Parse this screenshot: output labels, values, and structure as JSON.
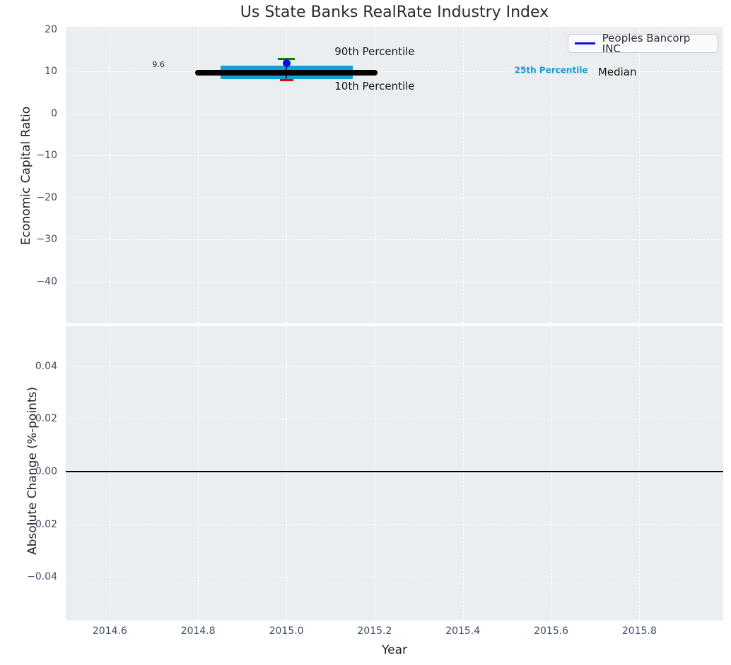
{
  "chart_data": {
    "type": "boxplot",
    "title": "Us State Banks RealRate Industry Index",
    "xlabel": "Year",
    "grid": true,
    "legend_position": "upper right",
    "legend": {
      "label": "Peoples Bancorp INC",
      "line_color": "#0d0de8"
    },
    "xlim": [
      2014.5,
      2015.99
    ],
    "x_ticks": [
      2014.6,
      2014.8,
      2015.0,
      2015.2,
      2015.4,
      2015.6,
      2015.8
    ],
    "x_tick_labels": [
      "2014.6",
      "2014.8",
      "2015.0",
      "2015.2",
      "2015.4",
      "2015.6",
      "2015.8"
    ],
    "panels": [
      {
        "name": "industry-index",
        "ylabel": "Economic Capital Ratio",
        "ylim": [
          -50,
          20.6
        ],
        "y_ticks": [
          20,
          10,
          0,
          -10,
          -20,
          -30,
          -40
        ],
        "y_tick_labels": [
          "20",
          "10",
          "0",
          "−10",
          "−20",
          "−30",
          "−40"
        ],
        "box": {
          "year": 2015.0,
          "median": 9.6,
          "median_line_span": [
            2014.8,
            2015.2
          ],
          "p25": 8.2,
          "p75": 11.4,
          "iqr_span": [
            2014.85,
            2015.15
          ],
          "p90": 13.0,
          "p10": 7.9,
          "colors": {
            "median": "#000000",
            "iqr_band": "#169dd6",
            "p90_cap": "#008000",
            "p10_cap": "#e8000b",
            "whisker": "#2a2a2a"
          }
        },
        "company_point": {
          "x": 2015.0,
          "y": 12.0,
          "color": "#0d0de8"
        },
        "annotations": [
          {
            "name": "90th-percentile-annotation",
            "text": "90th Percentile",
            "x": 2015.2,
            "y": 14.7,
            "color": "#1a1a1a",
            "size": 15,
            "bold": false
          },
          {
            "name": "10th-percentile-annotation",
            "text": "10th Percentile",
            "x": 2015.2,
            "y": 6.55,
            "color": "#1a1a1a",
            "size": 15,
            "bold": false
          },
          {
            "name": "25th-percentile-annotation",
            "text": "25th Percentile",
            "x": 2015.6,
            "y": 10.2,
            "color": "#109bd4",
            "size": 12,
            "bold": true
          },
          {
            "name": "median-annotation",
            "text": "Median",
            "x": 2015.75,
            "y": 9.8,
            "color": "#111111",
            "size": 15,
            "bold": false
          },
          {
            "name": "median-value-annotation",
            "text": "9.6",
            "x": 2014.71,
            "y": 11.5,
            "color": "#222222",
            "size": 11,
            "bold": false
          }
        ]
      },
      {
        "name": "absolute-change",
        "ylabel": "Absolute Change (%-points)",
        "ylim": [
          -0.0565,
          0.0552
        ],
        "y_ticks": [
          0.04,
          0.02,
          0.0,
          -0.02,
          -0.04
        ],
        "y_tick_labels": [
          "0.04",
          "0.02",
          "0.00",
          "−0.02",
          "−0.04"
        ],
        "zero_line": {
          "y": 0.0,
          "color": "#000000"
        }
      }
    ],
    "style": {
      "axes_bg": "#eaeef0",
      "grid_color": "#ffffff",
      "tick_color": "#3f4d62",
      "title_color": "#2b2b2b"
    }
  }
}
